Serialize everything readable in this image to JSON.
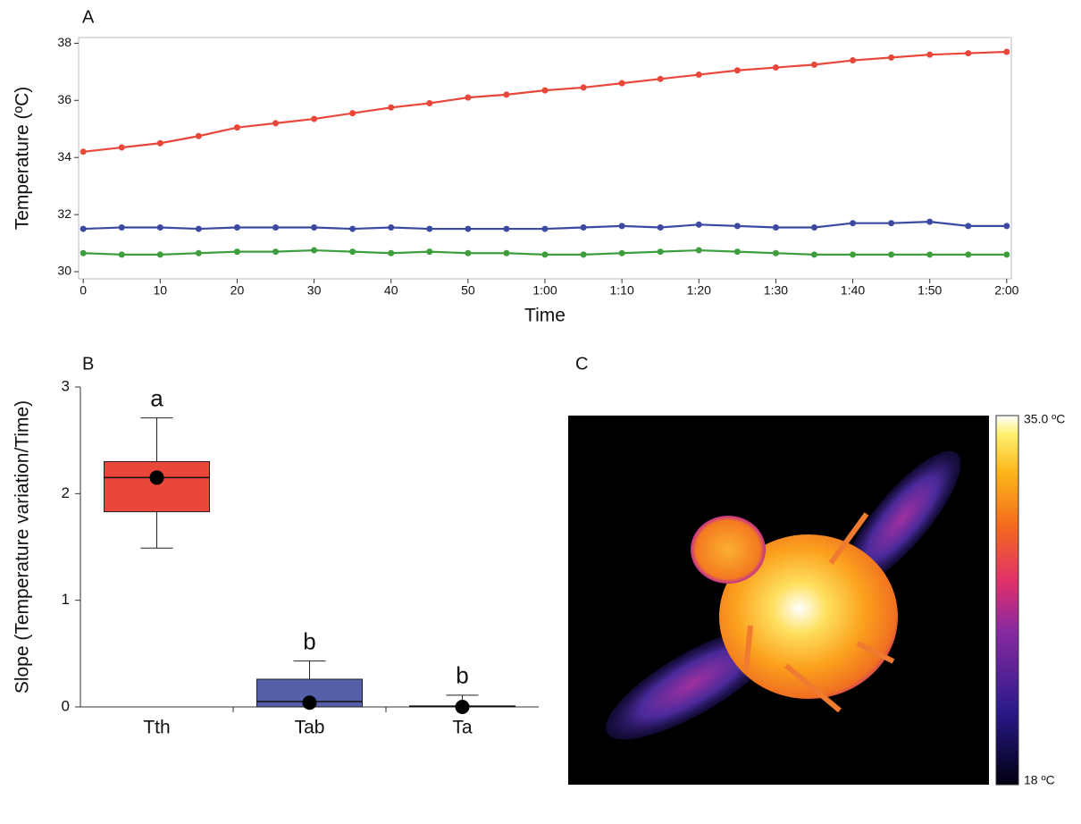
{
  "chart_data": [
    {
      "type": "line",
      "panel_label": "A",
      "y_label": "Temperature (ºC)",
      "x_label": "Time",
      "x": [
        0,
        5,
        10,
        15,
        20,
        25,
        30,
        35,
        40,
        45,
        50,
        55,
        60,
        65,
        70,
        75,
        80,
        85,
        90,
        95,
        100,
        105,
        110,
        115,
        120
      ],
      "series": [
        {
          "color": "#e8473a",
          "values": [
            34.2,
            34.35,
            34.5,
            34.75,
            35.05,
            35.2,
            35.35,
            35.55,
            35.75,
            35.9,
            36.1,
            36.2,
            36.35,
            36.45,
            36.6,
            36.75,
            36.9,
            37.05,
            37.15,
            37.25,
            37.4,
            37.5,
            37.6,
            37.65,
            37.7
          ]
        },
        {
          "color": "#3b4aa0",
          "values": [
            31.5,
            31.55,
            31.55,
            31.5,
            31.55,
            31.55,
            31.55,
            31.5,
            31.55,
            31.5,
            31.5,
            31.5,
            31.5,
            31.55,
            31.6,
            31.55,
            31.65,
            31.6,
            31.55,
            31.55,
            31.7,
            31.7,
            31.75,
            31.6,
            31.6
          ]
        },
        {
          "color": "#3e9e3e",
          "values": [
            30.65,
            30.6,
            30.6,
            30.65,
            30.7,
            30.7,
            30.75,
            30.7,
            30.65,
            30.7,
            30.65,
            30.65,
            30.6,
            30.6,
            30.65,
            30.7,
            30.75,
            30.7,
            30.65,
            30.6,
            30.6,
            30.6,
            30.6,
            30.6,
            30.6
          ]
        }
      ],
      "xlim": [
        -0.6,
        120.6
      ],
      "ylim": [
        29.75,
        38.2
      ],
      "xticks": [
        0,
        10,
        20,
        30,
        40,
        50,
        {
          "value": 60,
          "label": "1:00"
        },
        {
          "value": 70,
          "label": "1:10"
        },
        {
          "value": 80,
          "label": "1:20"
        },
        {
          "value": 90,
          "label": "1:30"
        },
        {
          "value": 100,
          "label": "1:40"
        },
        {
          "value": 110,
          "label": "1:50"
        },
        {
          "value": 120,
          "label": "2:00"
        }
      ],
      "yticks": [
        30,
        32,
        34,
        36,
        38
      ],
      "grid": false
    },
    {
      "type": "box",
      "panel_label": "B",
      "y_label": "Slope (Temperature variation/Time)",
      "categories": [
        "Tth",
        "Tab",
        "Ta"
      ],
      "colors": [
        "#e8473a",
        "#5560a8",
        "#3e9e3e"
      ],
      "boxes": [
        {
          "whislo": 1.49,
          "q1": 1.83,
          "med": 2.15,
          "q3": 2.3,
          "whishi": 2.71,
          "mean": 2.15
        },
        {
          "whislo": 0,
          "q1": 0,
          "med": 0.05,
          "q3": 0.26,
          "whishi": 0.43,
          "mean": 0.04
        },
        {
          "whislo": 0,
          "q1": 0,
          "med": 0.005,
          "q3": 0.01,
          "whishi": 0.11,
          "mean": 0
        }
      ],
      "annotations": [
        "a",
        "b",
        "b"
      ],
      "ylim": [
        0,
        3
      ],
      "yticks": [
        0,
        1,
        2,
        3
      ]
    }
  ],
  "thermal_image": {
    "panel_label": "C",
    "scale_max": "35.0 ºC",
    "scale_min": "18 ºC"
  }
}
